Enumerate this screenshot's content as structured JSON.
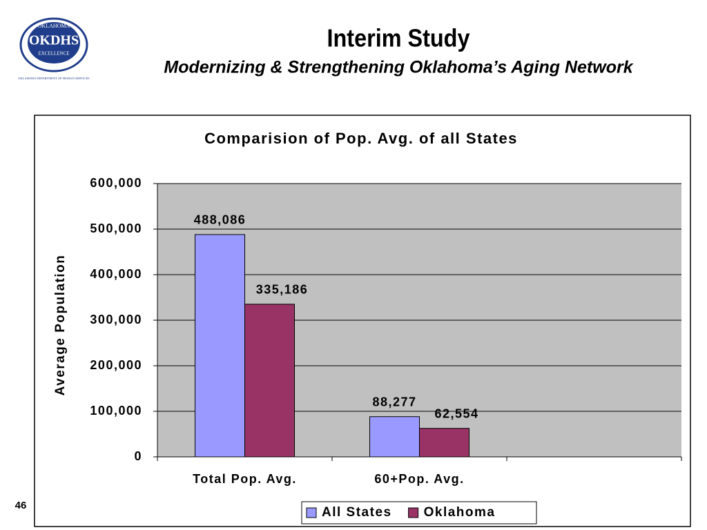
{
  "header": {
    "title": "Interim Study",
    "subtitle": "Modernizing & Strengthening Oklahoma’s Aging Network"
  },
  "logo": {
    "top": "OKLAHOMA",
    "name": "OKDHS",
    "motto": "EXCELLENCE",
    "caption": "OKLAHOMA DEPARTMENT OF HUMAN SERVICES"
  },
  "page_number": "46",
  "chart_data": {
    "type": "bar",
    "title": "Comparision of Pop. Avg. of all States",
    "y_label": "Average Population",
    "categories": [
      "Total Pop. Avg.",
      "60+Pop. Avg.",
      null
    ],
    "series": [
      {
        "name": "All States",
        "color": "#9999ff",
        "values": [
          488086,
          88277,
          null
        ],
        "value_labels": [
          "488,086",
          "88,277",
          null
        ]
      },
      {
        "name": "Oklahoma",
        "color": "#993366",
        "values": [
          335186,
          62554,
          null
        ],
        "value_labels": [
          "335,186",
          "62,554",
          null
        ]
      }
    ],
    "ylim": [
      0,
      600000
    ],
    "yticks": [
      0,
      {
        "value": 100000,
        "label": "100,000"
      },
      {
        "value": 200000,
        "label": "200,000"
      },
      {
        "value": 300000,
        "label": "300,000"
      },
      {
        "value": 400000,
        "label": "400,000"
      },
      {
        "value": 500000,
        "label": "500,000"
      },
      {
        "value": 600000,
        "label": "600,000"
      }
    ],
    "grid": true,
    "legend": "bottom"
  }
}
